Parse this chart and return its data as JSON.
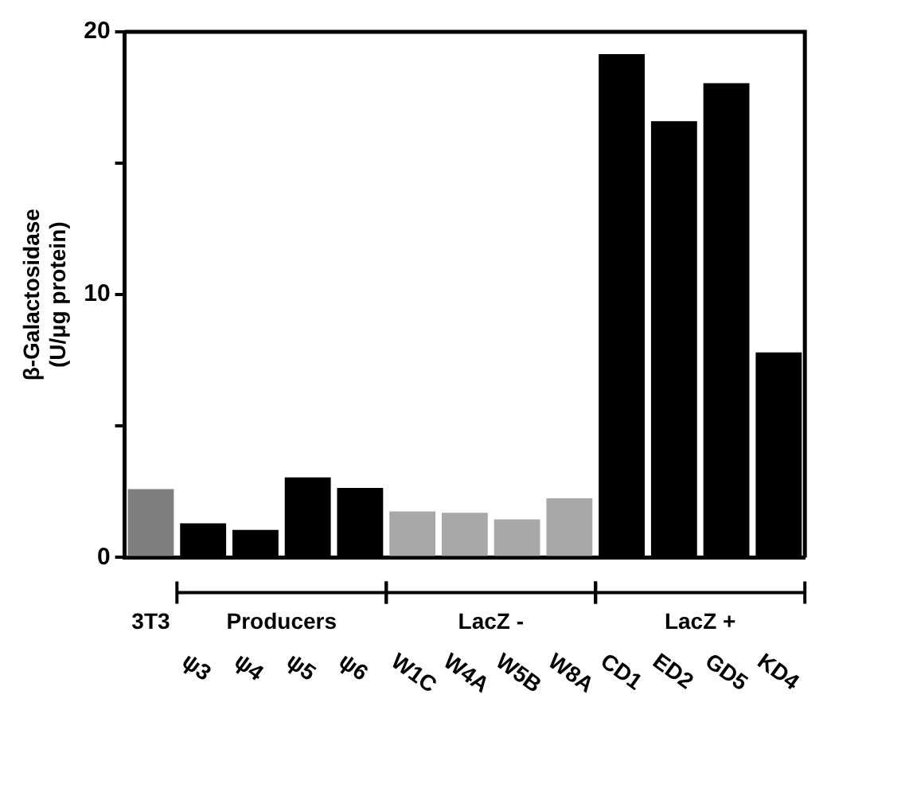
{
  "chart_data": {
    "type": "bar",
    "ylabel": "β-Galactosidase\n(U/μg protein)",
    "categories": [
      "3T3",
      "ψ3",
      "ψ4",
      "ψ5",
      "ψ6",
      "W1C",
      "W4A",
      "W5B",
      "W8A",
      "CD1",
      "ED2",
      "GD5",
      "KD4"
    ],
    "values": [
      2.6,
      1.3,
      1.05,
      3.05,
      2.65,
      1.75,
      1.7,
      1.45,
      2.25,
      19.15,
      16.6,
      18.05,
      7.8
    ],
    "colors": [
      "#7f7f7f",
      "#000000",
      "#000000",
      "#000000",
      "#000000",
      "#a8a8a8",
      "#a8a8a8",
      "#a8a8a8",
      "#a8a8a8",
      "#000000",
      "#000000",
      "#000000",
      "#000000"
    ],
    "ylim": [
      0,
      20
    ],
    "yticks": [
      0,
      {
        "value": 5,
        "label": null
      },
      10,
      {
        "value": 15,
        "label": null
      },
      20
    ],
    "annotations": [
      "Producers",
      "LacZ -",
      "LacZ +"
    ],
    "grid": false,
    "legend": false
  }
}
